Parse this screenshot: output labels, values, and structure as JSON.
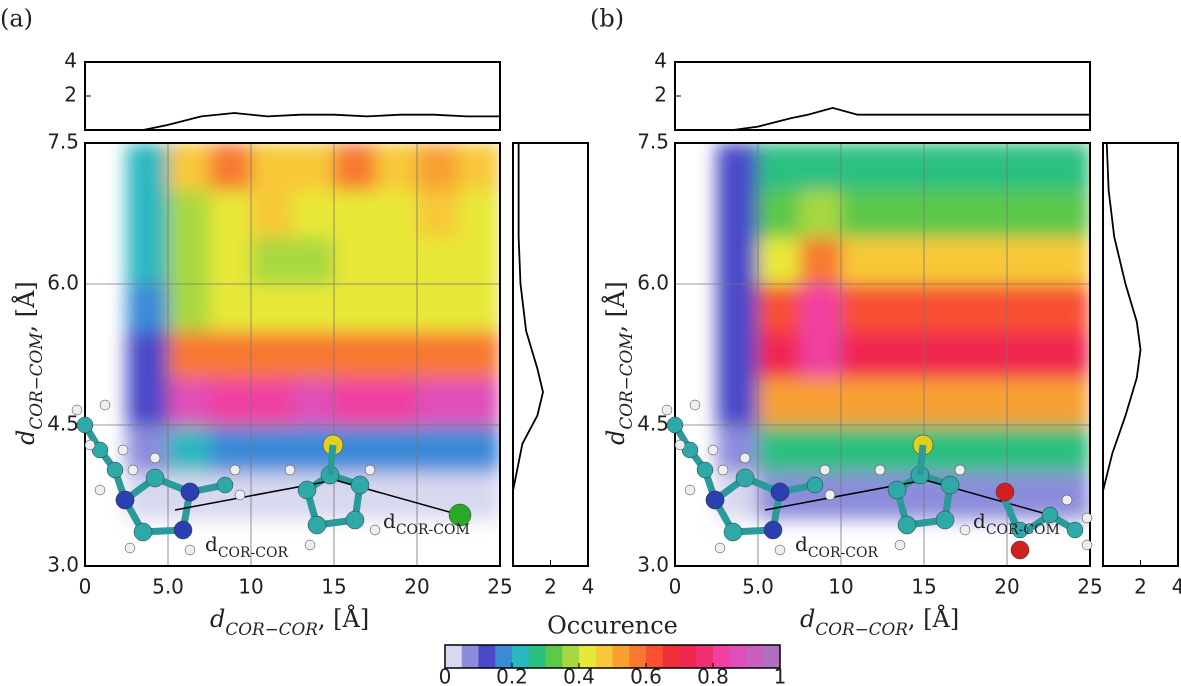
{
  "chart_data": [
    {
      "type": "contour",
      "label": "(a)",
      "x_label": {
        "main": "d",
        "sub": "COR−COR",
        "rest": ", [Å]"
      },
      "y_label": {
        "main": "d",
        "sub": "COR−COM",
        "rest": ", [Å]"
      },
      "xlim": [
        0,
        25
      ],
      "ylim": [
        3,
        7.5
      ],
      "xticks": [
        0,
        {
          "value": 5,
          "label": "5.0"
        },
        10,
        15,
        20,
        25
      ],
      "yticks": [
        {
          "value": 3,
          "label": "3.0"
        },
        4.5,
        {
          "value": 6,
          "label": "6.0"
        },
        7.5
      ],
      "grid": true,
      "xbins": [
        2.5,
        5,
        7.5,
        10,
        12.5,
        15,
        17.5,
        20,
        22.5,
        25
      ],
      "ybins": [
        3.5,
        4,
        4.5,
        5,
        5.5,
        6,
        6.5,
        7,
        7.5
      ],
      "z": [
        [
          0.02,
          0.04,
          0.04,
          0.04,
          0.04,
          0.04,
          0.04,
          0.04,
          0.04
        ],
        [
          0.08,
          0.2,
          0.18,
          0.18,
          0.18,
          0.18,
          0.18,
          0.18,
          0.18
        ],
        [
          0.12,
          0.85,
          0.8,
          0.8,
          0.85,
          0.82,
          0.82,
          0.85,
          0.85
        ],
        [
          0.12,
          0.55,
          0.55,
          0.55,
          0.55,
          0.55,
          0.55,
          0.55,
          0.55
        ],
        [
          0.18,
          0.35,
          0.4,
          0.4,
          0.4,
          0.4,
          0.4,
          0.4,
          0.4
        ],
        [
          0.2,
          0.35,
          0.42,
          0.38,
          0.38,
          0.42,
          0.4,
          0.4,
          0.4
        ],
        [
          0.2,
          0.38,
          0.42,
          0.45,
          0.4,
          0.42,
          0.42,
          0.45,
          0.42
        ],
        [
          0.2,
          0.45,
          0.55,
          0.48,
          0.45,
          0.55,
          0.45,
          0.52,
          0.45
        ]
      ],
      "top": {
        "type": "line",
        "x": [
          3.5,
          5,
          7,
          9,
          11,
          13,
          15,
          17,
          19,
          21,
          23,
          25
        ],
        "values": [
          0,
          0.3,
          0.8,
          1.0,
          0.8,
          0.9,
          0.9,
          0.8,
          0.9,
          0.9,
          0.8,
          0.8
        ],
        "ylim": [
          0,
          4
        ],
        "yticks": [
          2,
          4
        ]
      },
      "right": {
        "type": "line",
        "y": [
          3.8,
          4,
          4.3,
          4.6,
          4.85,
          5.1,
          5.5,
          6,
          6.5,
          7,
          7.5
        ],
        "values": [
          0,
          0.2,
          0.5,
          1.3,
          1.6,
          1.3,
          0.7,
          0.4,
          0.3,
          0.3,
          0.3
        ],
        "xlim": [
          0,
          4
        ],
        "xticks": [
          2,
          4
        ]
      },
      "annotations": [
        {
          "main": "d",
          "sub": "COR-COR"
        },
        {
          "main": "d",
          "sub": "COR-COM"
        }
      ]
    },
    {
      "type": "contour",
      "label": "(b)",
      "x_label": {
        "main": "d",
        "sub": "COR−COR",
        "rest": ", [Å]"
      },
      "y_label": {
        "main": "d",
        "sub": "COR−COM",
        "rest": ", [Å]"
      },
      "xlim": [
        0,
        25
      ],
      "ylim": [
        3,
        7.5
      ],
      "xticks": [
        0,
        {
          "value": 5,
          "label": "5.0"
        },
        10,
        15,
        20,
        25
      ],
      "yticks": [
        {
          "value": 3,
          "label": "3.0"
        },
        4.5,
        {
          "value": 6,
          "label": "6.0"
        },
        7.5
      ],
      "grid": true,
      "xbins": [
        2.5,
        5,
        7.5,
        10,
        12.5,
        15,
        17.5,
        20,
        22.5,
        25
      ],
      "ybins": [
        3.5,
        4,
        4.5,
        5,
        5.5,
        6,
        6.5,
        7,
        7.5
      ],
      "z": [
        [
          0.02,
          0.05,
          0.05,
          0.05,
          0.05,
          0.05,
          0.05,
          0.05,
          0.05
        ],
        [
          0.08,
          0.25,
          0.25,
          0.25,
          0.25,
          0.25,
          0.25,
          0.25,
          0.25
        ],
        [
          0.1,
          0.5,
          0.5,
          0.5,
          0.5,
          0.5,
          0.5,
          0.5,
          0.5
        ],
        [
          0.12,
          0.7,
          0.8,
          0.72,
          0.72,
          0.72,
          0.72,
          0.72,
          0.72
        ],
        [
          0.12,
          0.6,
          0.8,
          0.62,
          0.62,
          0.62,
          0.62,
          0.6,
          0.6
        ],
        [
          0.1,
          0.4,
          0.55,
          0.45,
          0.45,
          0.45,
          0.45,
          0.45,
          0.45
        ],
        [
          0.1,
          0.3,
          0.35,
          0.3,
          0.3,
          0.3,
          0.3,
          0.3,
          0.3
        ],
        [
          0.1,
          0.25,
          0.28,
          0.25,
          0.25,
          0.25,
          0.25,
          0.25,
          0.25
        ]
      ],
      "top": {
        "type": "line",
        "x": [
          3.5,
          5,
          7,
          8,
          9.5,
          11,
          13,
          15,
          20,
          25
        ],
        "values": [
          0,
          0.2,
          0.7,
          0.9,
          1.3,
          0.9,
          0.9,
          0.9,
          0.9,
          0.9
        ],
        "ylim": [
          0,
          4
        ],
        "yticks": [
          2,
          4
        ]
      },
      "right": {
        "type": "line",
        "y": [
          3.8,
          4.2,
          4.6,
          5.0,
          5.3,
          5.6,
          6,
          6.5,
          7,
          7.5
        ],
        "values": [
          0,
          0.5,
          1.2,
          1.8,
          2.0,
          1.8,
          1.2,
          0.6,
          0.3,
          0.2
        ],
        "xlim": [
          0,
          4
        ],
        "xticks": [
          2,
          4
        ]
      },
      "annotations": [
        {
          "main": "d",
          "sub": "COR-COR"
        },
        {
          "main": "d",
          "sub": "COR-COM"
        }
      ]
    },
    {
      "type": "colorbar",
      "title": "Occurence",
      "lim": [
        0,
        1
      ],
      "ticks": [
        0,
        0.2,
        0.4,
        0.6,
        0.8,
        1
      ],
      "colors": [
        "#d8d8f0",
        "#8c8cdc",
        "#4a4ac8",
        "#3a8ad8",
        "#2ab8c0",
        "#2cc080",
        "#5cc84c",
        "#a8d840",
        "#e8e838",
        "#f8c838",
        "#f8a030",
        "#f87830",
        "#f85030",
        "#f03038",
        "#f02850",
        "#f03070",
        "#f040a0",
        "#e050b8",
        "#c860c0",
        "#b070c0"
      ]
    }
  ]
}
